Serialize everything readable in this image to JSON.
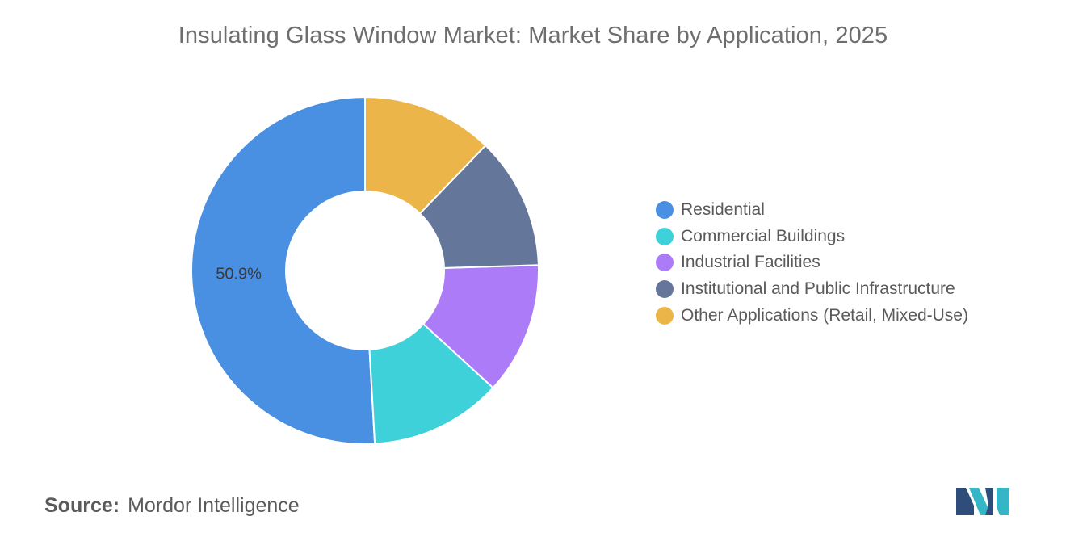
{
  "chart_data": {
    "type": "pie",
    "donut": true,
    "title": "Insulating Glass Window Market: Market Share by Application, 2025",
    "categories": [
      "Residential",
      "Commercial Buildings",
      "Industrial Facilities",
      "Institutional and Public Infrastructure",
      "Other Applications (Retail, Mixed-Use)"
    ],
    "values": [
      50.9,
      12.3,
      12.3,
      12.3,
      12.2
    ],
    "colors": [
      "#4a90e2",
      "#3fd1da",
      "#ac7cf8",
      "#64779a",
      "#ebb54a"
    ],
    "data_labels": [
      "50.9%",
      "",
      "",
      "",
      ""
    ],
    "start_angle_deg": 0,
    "direction": "counterclockwise",
    "legend_position": "right"
  },
  "source": {
    "label": "Source:",
    "value": "Mordor Intelligence"
  },
  "logo": {
    "icon": "mordor-intelligence-logo-icon",
    "colors": [
      "#2f4d7a",
      "#35b6c7"
    ]
  }
}
